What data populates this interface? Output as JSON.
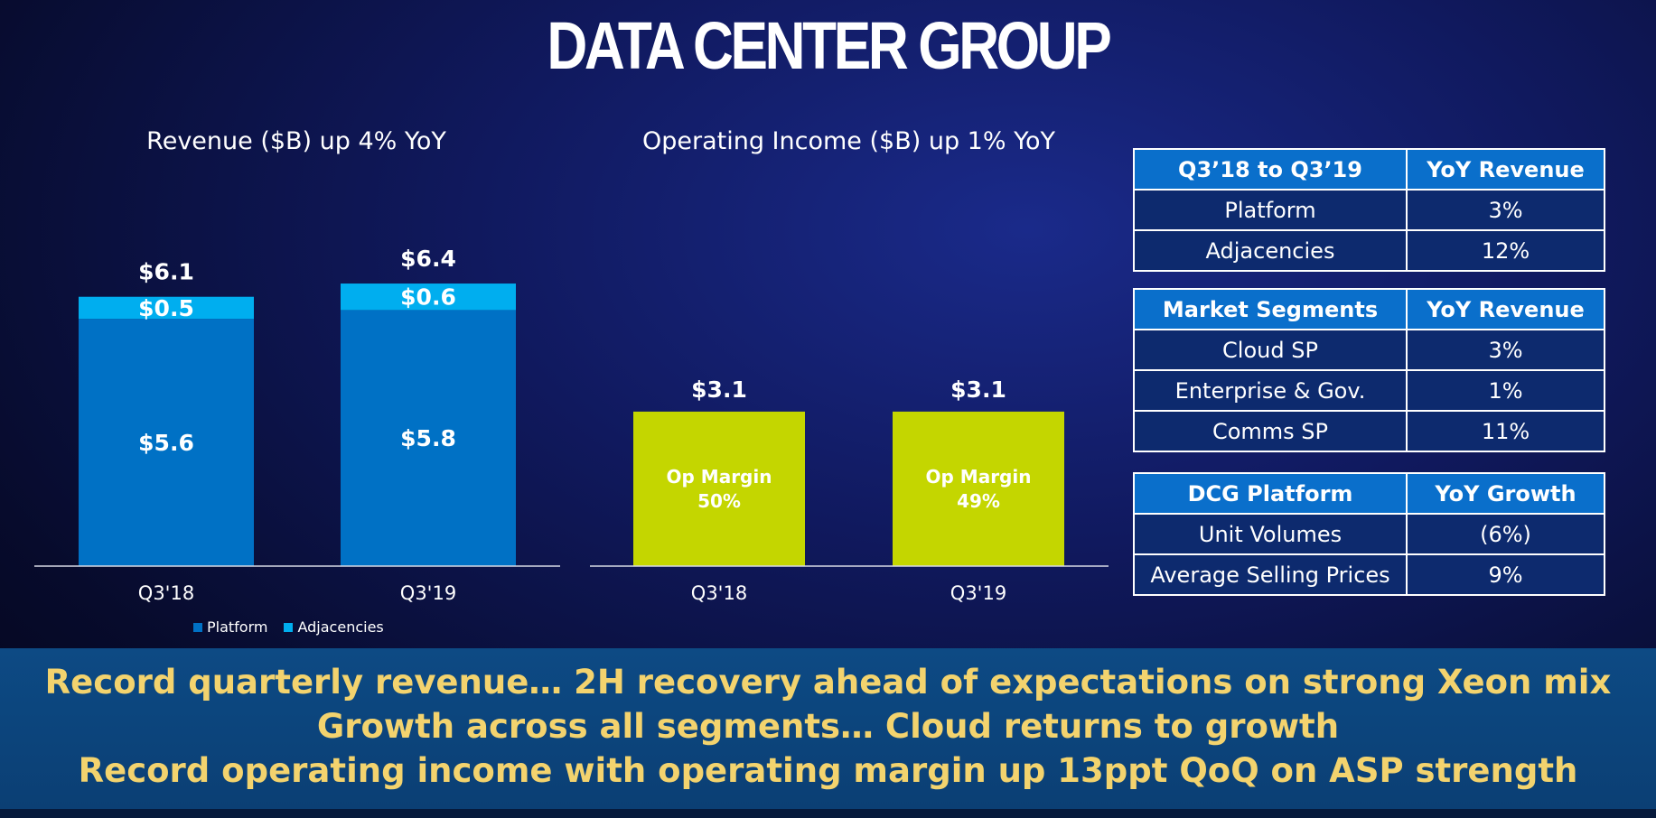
{
  "title": "DATA CENTER GROUP",
  "revenue_chart_title": "Revenue ($B) up 4% YoY",
  "income_chart_title": "Operating Income ($B) up 1% YoY",
  "legend": [
    {
      "label": "Platform",
      "color": "#0071c5"
    },
    {
      "label": "Adjacencies",
      "color": "#00aeef"
    }
  ],
  "chart_data": [
    {
      "type": "bar",
      "stacked": true,
      "title": "Revenue ($B) up 4% YoY",
      "categories": [
        "Q3'18",
        "Q3'19"
      ],
      "series": [
        {
          "name": "Platform",
          "values": [
            5.6,
            5.8
          ],
          "labels": [
            "$5.6",
            "$5.8"
          ],
          "color": "#0071c5"
        },
        {
          "name": "Adjacencies",
          "values": [
            0.5,
            0.6
          ],
          "labels": [
            "$0.5",
            "$0.6"
          ],
          "color": "#00aeef"
        }
      ],
      "totals": [
        6.1,
        6.4
      ],
      "total_labels": [
        "$6.1",
        "$6.4"
      ],
      "ylim": [
        0,
        7.0
      ],
      "grid": false,
      "legend": "bottom-left"
    },
    {
      "type": "bar",
      "title": "Operating Income ($B) up 1% YoY",
      "categories": [
        "Q3'18",
        "Q3'19"
      ],
      "values": [
        3.1,
        3.1
      ],
      "value_labels": [
        "$3.1",
        "$3.1"
      ],
      "inner_labels": [
        [
          "Op Margin",
          "50%"
        ],
        [
          "Op Margin",
          "49%"
        ]
      ],
      "color": "#c4d600",
      "ylim": [
        0,
        7.0
      ],
      "grid": false
    }
  ],
  "tables": [
    {
      "header": [
        "Q3’18 to Q3’19",
        "YoY Revenue"
      ],
      "rows": [
        [
          "Platform",
          "3%"
        ],
        [
          "Adjacencies",
          "12%"
        ]
      ]
    },
    {
      "header": [
        "Market Segments",
        "YoY Revenue"
      ],
      "rows": [
        [
          "Cloud SP",
          "3%"
        ],
        [
          "Enterprise & Gov.",
          "1%"
        ],
        [
          "Comms SP",
          "11%"
        ]
      ]
    },
    {
      "header": [
        "DCG Platform",
        "YoY Growth"
      ],
      "rows": [
        [
          "Unit Volumes",
          "(6%)"
        ],
        [
          "Average Selling Prices",
          "9%"
        ]
      ]
    }
  ],
  "banner_lines": [
    "Record quarterly revenue…  2H recovery ahead of expectations on strong Xeon mix",
    "Growth across all segments… Cloud returns to growth",
    "Record operating income with operating margin up 13ppt QoQ on ASP strength"
  ]
}
